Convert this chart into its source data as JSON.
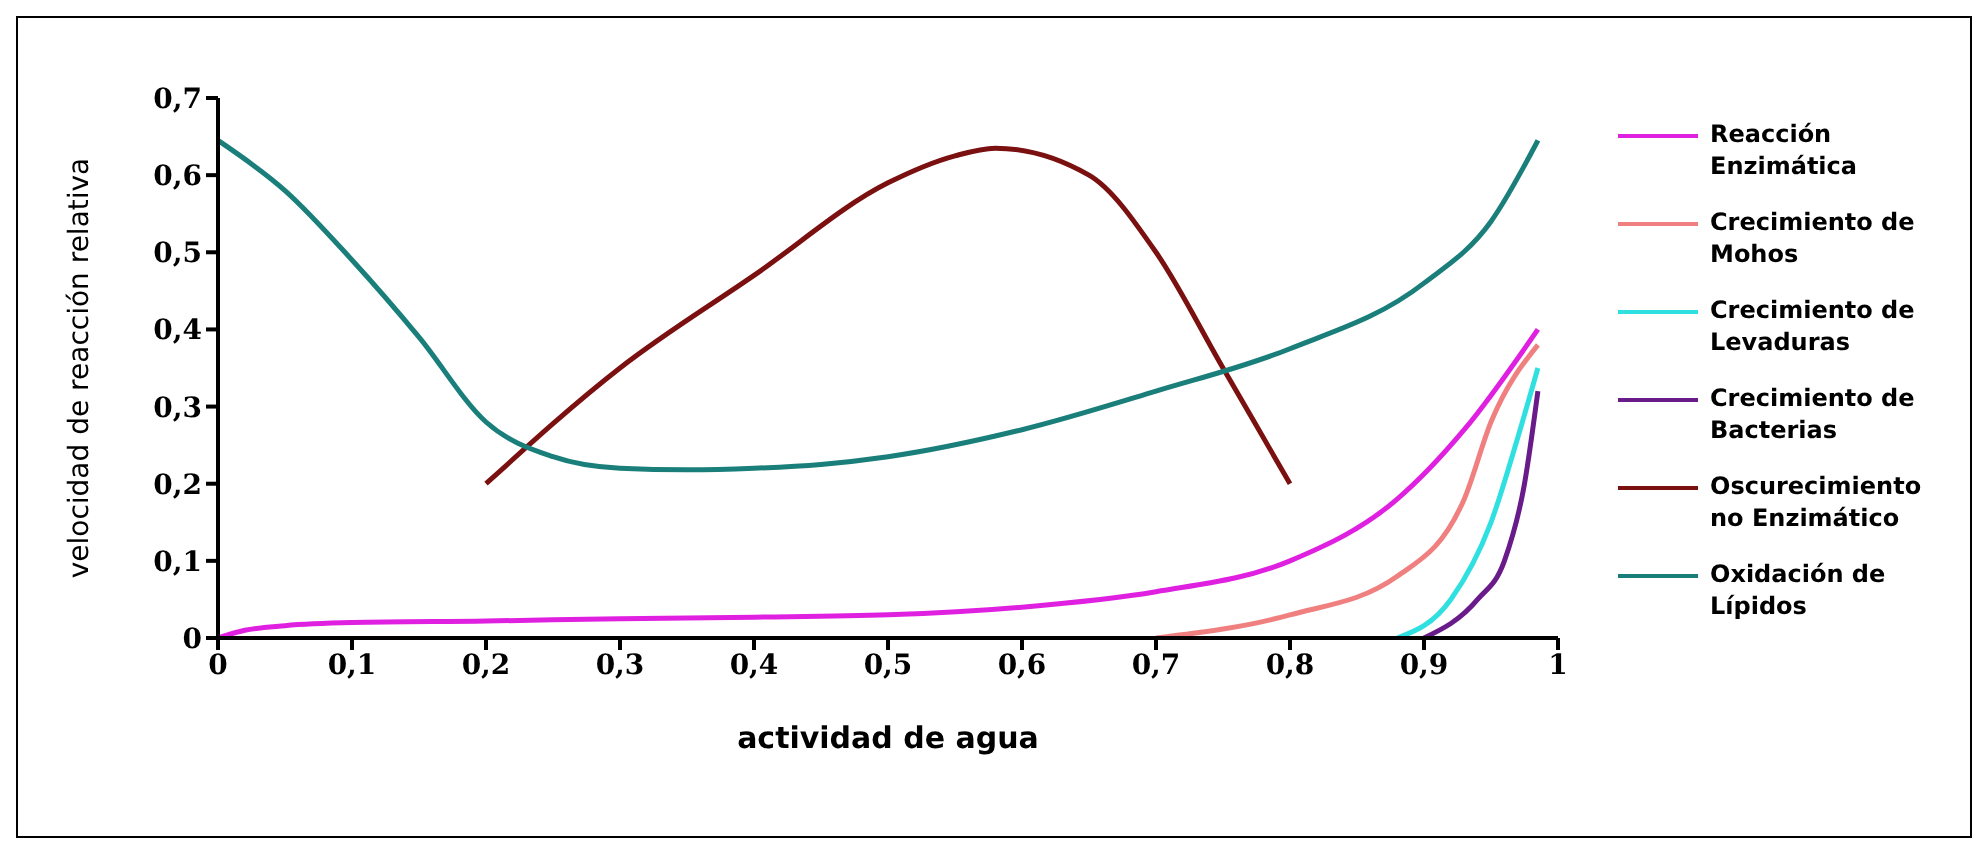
{
  "chart_data": {
    "type": "line",
    "xlabel": "actividad de agua",
    "ylabel": "velocidad de reacción relativa",
    "xlim": [
      0,
      1
    ],
    "xticks": [
      0,
      {
        "value": 0.1,
        "label": "0,1"
      },
      {
        "value": 0.2,
        "label": "0,2"
      },
      {
        "value": 0.3,
        "label": "0,3"
      },
      {
        "value": 0.4,
        "label": "0,4"
      },
      {
        "value": 0.5,
        "label": "0,5"
      },
      {
        "value": 0.6,
        "label": "0,6"
      },
      {
        "value": 0.7,
        "label": "0,7"
      },
      {
        "value": 0.8,
        "label": "0,8"
      },
      {
        "value": 0.9,
        "label": "0,9"
      },
      1
    ],
    "ylim": [
      0,
      0.7
    ],
    "yticks": [
      0,
      {
        "value": 0.1,
        "label": "0,1"
      },
      {
        "value": 0.2,
        "label": "0,2"
      },
      {
        "value": 0.3,
        "label": "0,3"
      },
      {
        "value": 0.4,
        "label": "0,4"
      },
      {
        "value": 0.5,
        "label": "0,5"
      },
      {
        "value": 0.6,
        "label": "0,6"
      },
      {
        "value": 0.7,
        "label": "0,7"
      }
    ],
    "grid": false,
    "legend": "right",
    "marker": "none",
    "line_style": "solid",
    "series": [
      {
        "name": "Reacción Enzimática",
        "color": "#e020e0",
        "x": [
          0,
          0.02,
          0.05,
          0.1,
          0.2,
          0.3,
          0.4,
          0.5,
          0.6,
          0.7,
          0.8,
          0.88,
          0.93,
          0.985
        ],
        "values": [
          0,
          0.01,
          0.016,
          0.02,
          0.022,
          0.025,
          0.027,
          0.03,
          0.04,
          0.06,
          0.1,
          0.18,
          0.27,
          0.4
        ]
      },
      {
        "name": "Crecimiento de Mohos",
        "color": "#f08080",
        "x": [
          0.7,
          0.8,
          0.88,
          0.93,
          0.95,
          0.985
        ],
        "values": [
          0,
          0.03,
          0.08,
          0.18,
          0.28,
          0.38
        ]
      },
      {
        "name": "Crecimiento de Levaduras",
        "color": "#30e0e0",
        "x": [
          0.88,
          0.92,
          0.95,
          0.97,
          0.985
        ],
        "values": [
          0,
          0.05,
          0.15,
          0.26,
          0.35
        ]
      },
      {
        "name": "Crecimiento de Bacterias",
        "color": "#6a1b8a",
        "x": [
          0.9,
          0.94,
          0.96,
          0.975,
          0.985
        ],
        "values": [
          0,
          0.05,
          0.1,
          0.2,
          0.32
        ]
      },
      {
        "name": "Oscurecimiento no Enzimático",
        "color": "#7b1010",
        "x": [
          0.2,
          0.3,
          0.4,
          0.5,
          0.55,
          0.58,
          0.65,
          0.7,
          0.75,
          0.8
        ],
        "values": [
          0.2,
          0.35,
          0.47,
          0.59,
          0.625,
          0.635,
          0.6,
          0.5,
          0.35,
          0.2
        ]
      },
      {
        "name": "Oxidación de Lípidos",
        "color": "#1a7f7a",
        "x": [
          0,
          0.05,
          0.1,
          0.15,
          0.2,
          0.25,
          0.3,
          0.35,
          0.4,
          0.45,
          0.5,
          0.6,
          0.7,
          0.8,
          0.9,
          0.95,
          0.985
        ],
        "values": [
          0.645,
          0.58,
          0.49,
          0.39,
          0.28,
          0.235,
          0.22,
          0.218,
          0.22,
          0.225,
          0.235,
          0.27,
          0.32,
          0.375,
          0.46,
          0.54,
          0.645
        ]
      }
    ]
  }
}
